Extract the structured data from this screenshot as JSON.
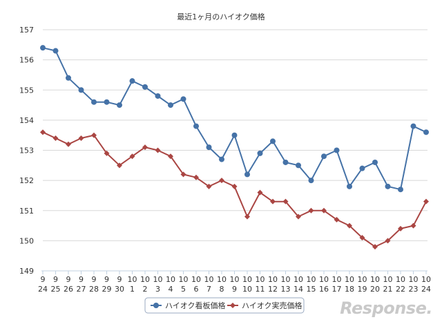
{
  "watermark": "Response.",
  "chart_data": {
    "type": "line",
    "title": "最近1ヶ月のハイオク価格",
    "xlabel": "",
    "ylabel": "",
    "ylim": [
      149,
      157
    ],
    "yticks": [
      149,
      150,
      151,
      152,
      153,
      154,
      155,
      156,
      157
    ],
    "grid": true,
    "legend_position": "bottom",
    "x": [
      [
        "9",
        "24"
      ],
      [
        "9",
        "25"
      ],
      [
        "9",
        "26"
      ],
      [
        "9",
        "27"
      ],
      [
        "9",
        "28"
      ],
      [
        "9",
        "29"
      ],
      [
        "9",
        "30"
      ],
      [
        "10",
        "1"
      ],
      [
        "10",
        "2"
      ],
      [
        "10",
        "3"
      ],
      [
        "10",
        "4"
      ],
      [
        "10",
        "5"
      ],
      [
        "10",
        "6"
      ],
      [
        "10",
        "7"
      ],
      [
        "10",
        "8"
      ],
      [
        "10",
        "9"
      ],
      [
        "10",
        "10"
      ],
      [
        "10",
        "11"
      ],
      [
        "10",
        "12"
      ],
      [
        "10",
        "13"
      ],
      [
        "10",
        "14"
      ],
      [
        "10",
        "15"
      ],
      [
        "10",
        "16"
      ],
      [
        "10",
        "17"
      ],
      [
        "10",
        "18"
      ],
      [
        "10",
        "19"
      ],
      [
        "10",
        "20"
      ],
      [
        "10",
        "21"
      ],
      [
        "10",
        "22"
      ],
      [
        "10",
        "23"
      ],
      [
        "10",
        "24"
      ]
    ],
    "series": [
      {
        "name": "ハイオク看板価格",
        "color": "#4572a7",
        "marker": "circle",
        "values": [
          156.4,
          156.3,
          155.4,
          155.0,
          154.6,
          154.6,
          154.5,
          155.3,
          155.1,
          154.8,
          154.5,
          154.7,
          153.8,
          153.1,
          152.7,
          153.5,
          152.2,
          152.9,
          153.3,
          152.6,
          152.5,
          152.0,
          152.8,
          153.0,
          151.8,
          152.4,
          152.6,
          151.8,
          151.7,
          153.8,
          153.6
        ]
      },
      {
        "name": "ハイオク実売価格",
        "color": "#aa4643",
        "marker": "diamond",
        "values": [
          153.6,
          153.4,
          153.2,
          153.4,
          153.5,
          152.9,
          152.5,
          152.8,
          153.1,
          153.0,
          152.8,
          152.2,
          152.1,
          151.8,
          152.0,
          151.8,
          150.8,
          151.6,
          151.3,
          151.3,
          150.8,
          151.0,
          151.0,
          150.7,
          150.5,
          150.1,
          149.8,
          150.0,
          150.4,
          150.5,
          151.3
        ]
      }
    ]
  }
}
